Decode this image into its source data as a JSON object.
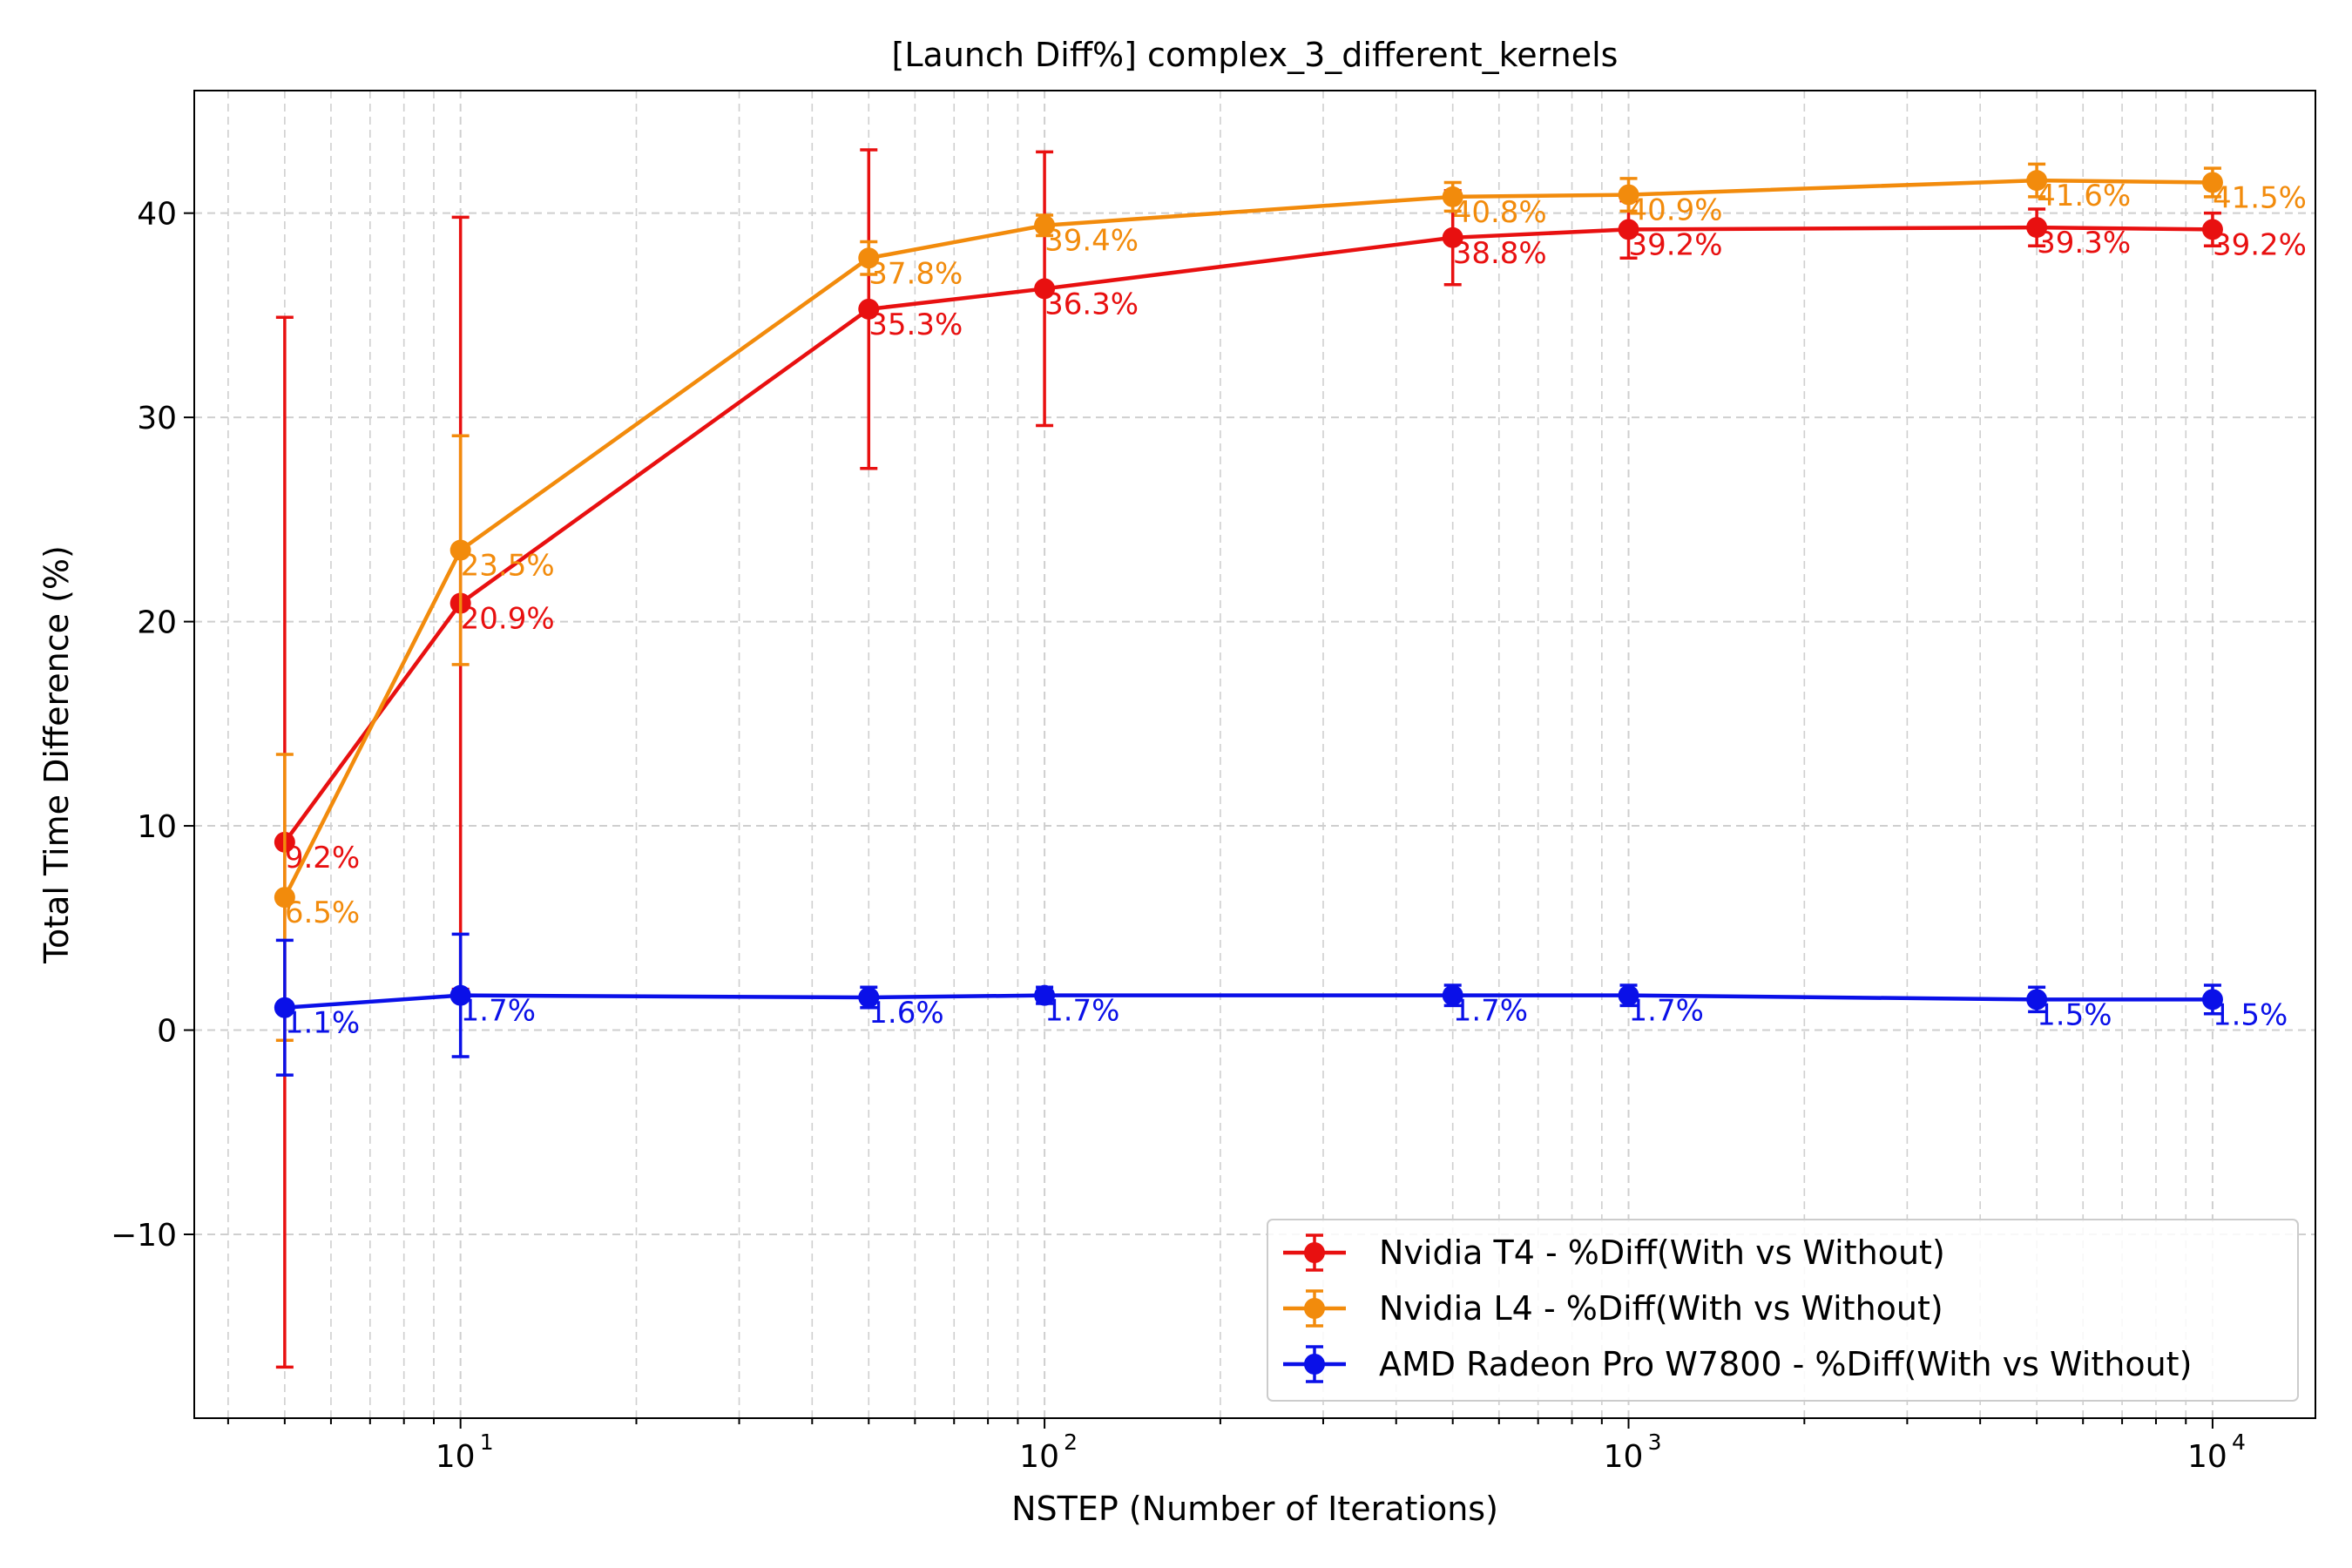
{
  "chart_data": {
    "type": "line",
    "title": "[Launch Diff%] complex_3_different_kernels",
    "xlabel": "NSTEP (Number of Iterations)",
    "ylabel": "Total Time Difference (%)",
    "x_scale": "log",
    "xlim": [
      3.5,
      15000
    ],
    "ylim": [
      -19.0,
      46.0
    ],
    "grid": true,
    "legend_position": "lower right",
    "x": [
      5,
      10,
      50,
      100,
      500,
      1000,
      5000,
      10000
    ],
    "x_ticks": [
      {
        "value": 10,
        "base": "10",
        "exp": "1"
      },
      {
        "value": 100,
        "base": "10",
        "exp": "2"
      },
      {
        "value": 1000,
        "base": "10",
        "exp": "3"
      },
      {
        "value": 10000,
        "base": "10",
        "exp": "4"
      }
    ],
    "y_ticks": [
      {
        "value": -10,
        "label": "−10"
      },
      {
        "value": 0,
        "label": "0"
      },
      {
        "value": 10,
        "label": "10"
      },
      {
        "value": 20,
        "label": "20"
      },
      {
        "value": 30,
        "label": "30"
      },
      {
        "value": 40,
        "label": "40"
      }
    ],
    "series": [
      {
        "name": "Nvidia T4 - %Diff(With vs Without)",
        "color": "#e81010",
        "values": [
          9.2,
          20.9,
          35.3,
          36.3,
          38.8,
          39.2,
          39.3,
          39.2
        ],
        "errors": [
          25.7,
          18.9,
          7.8,
          6.7,
          2.3,
          1.4,
          0.9,
          0.8
        ],
        "labels": [
          "9.2%",
          "20.9%",
          "35.3%",
          "36.3%",
          "38.8%",
          "39.2%",
          "39.3%",
          "39.2%"
        ]
      },
      {
        "name": "Nvidia L4 - %Diff(With vs Without)",
        "color": "#f28b0c",
        "values": [
          6.5,
          23.5,
          37.8,
          39.4,
          40.8,
          40.9,
          41.6,
          41.5
        ],
        "errors": [
          7.0,
          5.6,
          0.8,
          0.5,
          0.7,
          0.8,
          0.8,
          0.7
        ],
        "labels": [
          "6.5%",
          "23.5%",
          "37.8%",
          "39.4%",
          "40.8%",
          "40.9%",
          "41.6%",
          "41.5%"
        ]
      },
      {
        "name": "AMD Radeon Pro W7800 - %Diff(With vs Without)",
        "color": "#0a10e8",
        "values": [
          1.1,
          1.7,
          1.6,
          1.7,
          1.7,
          1.7,
          1.5,
          1.5
        ],
        "errors": [
          3.3,
          3.0,
          0.5,
          0.4,
          0.5,
          0.5,
          0.6,
          0.7
        ],
        "labels": [
          "1.1%",
          "1.7%",
          "1.6%",
          "1.7%",
          "1.7%",
          "1.7%",
          "1.5%",
          "1.5%"
        ]
      }
    ]
  }
}
